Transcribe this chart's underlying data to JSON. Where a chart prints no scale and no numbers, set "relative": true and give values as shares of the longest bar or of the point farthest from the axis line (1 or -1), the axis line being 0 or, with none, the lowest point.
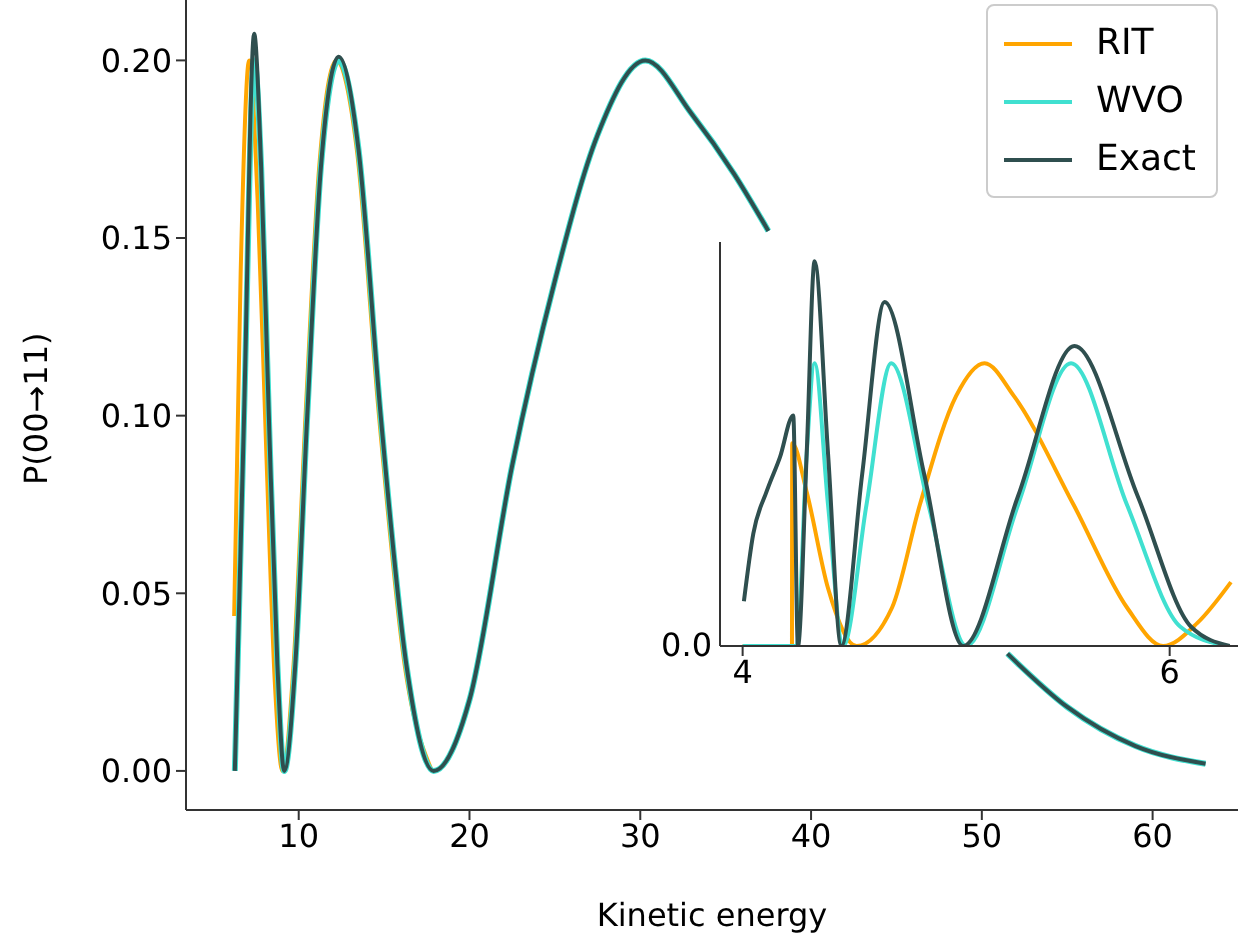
{
  "chart_data": [
    {
      "type": "line",
      "xlabel": "Kinetic energy",
      "ylabel": "P(00→11)",
      "xlim": [
        3.4,
        65
      ],
      "ylim": [
        -0.011,
        0.217
      ],
      "xticks": [
        10,
        20,
        30,
        40,
        50,
        60
      ],
      "yticks": [
        {
          "value": 0,
          "label": "0.00"
        },
        {
          "value": 0.05,
          "label": "0.05"
        },
        {
          "value": 0.1,
          "label": "0.10"
        },
        {
          "value": 0.15,
          "label": "0.15"
        },
        {
          "value": 0.2,
          "label": "0.20"
        }
      ],
      "legend": "top right",
      "grid": false,
      "series": [
        {
          "name": "RIT",
          "color": "#ffa500",
          "x": [
            6.22,
            6.6,
            7.1,
            7.6,
            8.1,
            8.6,
            9.05,
            9.7,
            10.4,
            11.2,
            12.2,
            13.4,
            14.7,
            16.2,
            17.8
          ],
          "values": [
            0.0436,
            0.14,
            0.2,
            0.16,
            0.09,
            0.025,
            0,
            0.03,
            0.1,
            0.17,
            0.2,
            0.175,
            0.1,
            0.03,
            0
          ]
        },
        {
          "name": "WVO",
          "color": "#40e0d0",
          "x": [
            6.26,
            6.8,
            7.39,
            7.8,
            8.25,
            8.75,
            9.15,
            9.8,
            10.5,
            11.3,
            12.34,
            13.5,
            14.8,
            16.3,
            17.9,
            20,
            22.5,
            25,
            27.5,
            30.3,
            33,
            35.5,
            37.5,
            44,
            51.5,
            55,
            59,
            63.1
          ],
          "values": [
            0,
            0.1,
            0.2,
            0.17,
            0.1,
            0.03,
            0,
            0.03,
            0.1,
            0.17,
            0.2,
            0.175,
            0.1,
            0.03,
            0,
            0.02,
            0.086,
            0.138,
            0.179,
            0.2,
            0.185,
            0.168,
            0.152,
            null,
            0.033,
            0.018,
            0.007,
            0.002
          ]
        },
        {
          "name": "Exact",
          "color": "#2f4f4f",
          "x": [
            6.26,
            6.8,
            7.39,
            7.8,
            8.25,
            8.75,
            9.15,
            9.8,
            10.5,
            11.3,
            12.34,
            13.5,
            14.8,
            16.3,
            17.9,
            20,
            22.5,
            25,
            27.5,
            30.3,
            33,
            35.5,
            37.5,
            44,
            51.5,
            55,
            59,
            63.1
          ],
          "values": [
            0,
            0.1,
            0.2075,
            0.17,
            0.1,
            0.03,
            0,
            0.03,
            0.1,
            0.17,
            0.201,
            0.175,
            0.1,
            0.03,
            0,
            0.02,
            0.086,
            0.138,
            0.179,
            0.2,
            0.185,
            0.168,
            0.152,
            null,
            0.033,
            0.018,
            0.007,
            0.002
          ]
        }
      ]
    },
    {
      "type": "line",
      "relative": true,
      "xlim": [
        3.894,
        6.32
      ],
      "xticks": [
        4,
        6
      ],
      "annotations": [
        "0.0"
      ],
      "grid": false,
      "legend": false,
      "series": [
        {
          "color": "#ffa500",
          "x": [
            4,
            4.231,
            4.232,
            4.3,
            4.4,
            4.534,
            4.7,
            4.83,
            5.0,
            5.133,
            5.27,
            5.55,
            5.8,
            5.969,
            6.13,
            6.287
          ],
          "values": [
            0,
            0,
            0.527,
            0.4,
            0.15,
            0,
            0.1,
            0.367,
            0.65,
            0.735,
            0.65,
            0.367,
            0.1,
            0,
            0.06,
            0.166
          ]
        },
        {
          "color": "#40e0d0",
          "x": [
            4,
            4.253,
            4.3,
            4.337,
            4.4,
            4.471,
            4.58,
            4.696,
            4.87,
            5.048,
            5.29,
            5.538,
            5.8,
            6.05,
            6.265
          ],
          "values": [
            0,
            0,
            0.5,
            0.735,
            0.367,
            0,
            0.367,
            0.735,
            0.367,
            0,
            0.367,
            0.735,
            0.367,
            0.05,
            0
          ]
        },
        {
          "color": "#2f4f4f",
          "x": [
            4.006,
            4.05,
            4.112,
            4.175,
            4.237,
            4.259,
            4.3,
            4.337,
            4.4,
            4.462,
            4.56,
            4.665,
            4.85,
            5.033,
            5.29,
            5.554,
            5.85,
            6.1,
            6.281
          ],
          "values": [
            0.116,
            0.292,
            0.401,
            0.491,
            0.599,
            0,
            0.5,
            1,
            0.5,
            0,
            0.447,
            0.894,
            0.447,
            0,
            0.39,
            0.78,
            0.39,
            0.05,
            0
          ]
        }
      ]
    }
  ]
}
